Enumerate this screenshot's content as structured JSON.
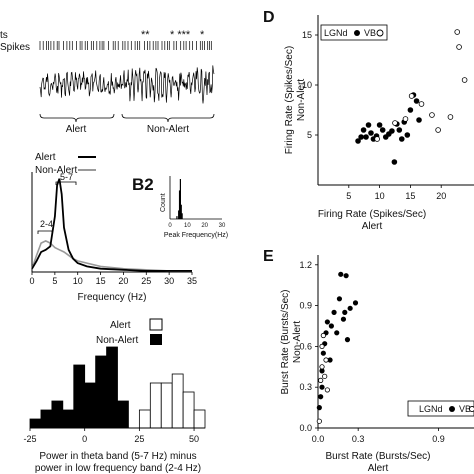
{
  "top_left": {
    "row_label_1": "ts",
    "row_label_2": "Spikes",
    "stars_1": "**",
    "stars_2": "* ***",
    "stars_3": "*",
    "state_alert": "Alert",
    "state_non_alert": "Non-Alert"
  },
  "panel_spectrum": {
    "legend": [
      "Alert",
      "Non-Alert"
    ],
    "band_labels": [
      "5-7",
      "2-4"
    ],
    "xlabel": "Frequency (Hz)",
    "x_ticks": [
      "0",
      "5",
      "10",
      "15",
      "20",
      "25",
      "30",
      "35"
    ],
    "colors": {
      "alert": "#000000",
      "non_alert": "#9a9a9a"
    }
  },
  "panel_b2": {
    "title": "B2",
    "ylabel": "Count",
    "xlabel": "Peak Frequency(Hz)",
    "x_ticks": [
      "0",
      "10",
      "20",
      "30"
    ]
  },
  "panel_hist": {
    "legend": [
      "Alert",
      "Non-Alert"
    ],
    "x_ticks": [
      "-25",
      "0",
      "25",
      "50"
    ],
    "xlabel_line1": "Power in theta band (5-7 Hz) minus",
    "xlabel_line2": "power in low frequency band (2-4 Hz)"
  },
  "panel_d": {
    "title": "D",
    "ylabel_line1": "Firing Rate (Spikes/Sec)",
    "ylabel_line2": "Non-Alert",
    "xlabel_line1": "Firing Rate (Spikes/Sec)",
    "xlabel_line2": "Alert",
    "legend_lgnd": "LGNd",
    "legend_vb": "VB",
    "x_ticks": [
      "5",
      "10",
      "15",
      "20"
    ],
    "y_ticks": [
      "5",
      "10",
      "15"
    ]
  },
  "panel_e": {
    "title": "E",
    "ylabel_line1": "Burst Rate (Bursts/Sec)",
    "ylabel_line2": "Non-Alert",
    "xlabel_line1": "Burst Rate (Bursts/Sec)",
    "xlabel_line2": "Alert",
    "legend_lgnd": "LGNd",
    "legend_vb": "VB",
    "x_ticks": [
      "0.0",
      "0.3",
      "0.9"
    ],
    "y_ticks": [
      "0.0",
      "0.3",
      "0.6",
      "0.9",
      "1.2"
    ]
  },
  "chart_data": [
    {
      "type": "line",
      "panel": "spectrum",
      "x": [
        0,
        1,
        2,
        3,
        4,
        5,
        5.5,
        6,
        6.5,
        7,
        8,
        9,
        10,
        12,
        15,
        20,
        25,
        30,
        35
      ],
      "series": [
        {
          "name": "Alert",
          "values": [
            0.3,
            1.0,
            1.8,
            2.0,
            2.3,
            5.0,
            7.8,
            8.4,
            7.0,
            4.0,
            2.0,
            1.2,
            0.8,
            0.5,
            0.3,
            0.2,
            0.1,
            0.1,
            0.1
          ]
        },
        {
          "name": "Non-Alert",
          "values": [
            0.3,
            1.5,
            2.6,
            2.8,
            2.6,
            2.2,
            2.1,
            2.0,
            1.9,
            1.8,
            1.5,
            1.2,
            1.0,
            0.8,
            0.5,
            0.3,
            0.2,
            0.1,
            0.1
          ]
        }
      ],
      "xlim": [
        0,
        35
      ],
      "xlabel": "Frequency (Hz)"
    },
    {
      "type": "bar",
      "panel": "B2",
      "categories": [
        4,
        5,
        5.5,
        6,
        6.5,
        7
      ],
      "values": [
        1,
        3,
        10,
        14,
        5,
        2
      ],
      "xlim": [
        0,
        30
      ],
      "xlabel": "Peak Frequency(Hz)",
      "ylabel": "Count"
    },
    {
      "type": "bar",
      "panel": "histogram",
      "bin_edges": [
        -25,
        -20,
        -15,
        -10,
        -5,
        0,
        5,
        10,
        15,
        20,
        25,
        30,
        35,
        40,
        45,
        50,
        55
      ],
      "series": [
        {
          "name": "Non-Alert",
          "values": [
            1,
            2,
            3,
            2,
            7,
            5,
            8,
            9,
            3,
            0,
            0,
            0,
            0,
            0,
            0,
            0
          ]
        },
        {
          "name": "Alert",
          "values": [
            0,
            0,
            0,
            0,
            0,
            0,
            0,
            0,
            0,
            0,
            2,
            5,
            5,
            6,
            4,
            2
          ]
        }
      ],
      "xlim": [
        -25,
        55
      ],
      "ylim": [
        0,
        10
      ]
    },
    {
      "type": "scatter",
      "panel": "D",
      "xlim": [
        0,
        25
      ],
      "ylim": [
        0,
        17
      ],
      "series": [
        {
          "name": "LGNd",
          "points": [
            [
              6.5,
              4.4
            ],
            [
              7,
              4.8
            ],
            [
              7.4,
              5.5
            ],
            [
              7.8,
              4.8
            ],
            [
              8.2,
              6.0
            ],
            [
              8.6,
              5.2
            ],
            [
              9.0,
              4.6
            ],
            [
              9.5,
              4.9
            ],
            [
              10,
              6.0
            ],
            [
              10.5,
              5.5
            ],
            [
              11,
              4.8
            ],
            [
              11.5,
              5.1
            ],
            [
              12,
              5.4
            ],
            [
              12.4,
              2.3
            ],
            [
              12.8,
              6.1
            ],
            [
              13.2,
              5.5
            ],
            [
              13.6,
              4.6
            ],
            [
              14,
              6.3
            ],
            [
              14.5,
              5.0
            ],
            [
              15,
              7.5
            ],
            [
              15.5,
              9.0
            ],
            [
              16,
              8.4
            ],
            [
              16.4,
              6.5
            ]
          ]
        },
        {
          "name": "VB",
          "points": [
            [
              9.6,
              4.6
            ],
            [
              12.5,
              6.2
            ],
            [
              14.2,
              6.6
            ],
            [
              15.2,
              8.9
            ],
            [
              16.8,
              8.1
            ],
            [
              18.5,
              7.0
            ],
            [
              19.5,
              5.5
            ],
            [
              21.5,
              6.8
            ],
            [
              22.6,
              15.3
            ],
            [
              22.9,
              13.8
            ],
            [
              23.8,
              10.5
            ]
          ]
        }
      ]
    },
    {
      "type": "scatter",
      "panel": "E",
      "xlim": [
        0,
        1.15
      ],
      "ylim": [
        0,
        1.25
      ],
      "series": [
        {
          "name": "LGNd",
          "points": [
            [
              0.01,
              0.15
            ],
            [
              0.02,
              0.23
            ],
            [
              0.03,
              0.3
            ],
            [
              0.03,
              0.42
            ],
            [
              0.04,
              0.55
            ],
            [
              0.05,
              0.62
            ],
            [
              0.06,
              0.7
            ],
            [
              0.07,
              0.78
            ],
            [
              0.09,
              0.5
            ],
            [
              0.1,
              0.75
            ],
            [
              0.12,
              0.85
            ],
            [
              0.14,
              0.7
            ],
            [
              0.16,
              0.95
            ],
            [
              0.17,
              1.13
            ],
            [
              0.19,
              0.8
            ],
            [
              0.2,
              0.85
            ],
            [
              0.22,
              0.65
            ],
            [
              0.24,
              0.88
            ],
            [
              0.28,
              0.92
            ],
            [
              0.21,
              1.12
            ]
          ]
        },
        {
          "name": "VB",
          "points": [
            [
              0.01,
              0.05
            ],
            [
              0.02,
              0.35
            ],
            [
              0.03,
              0.45
            ],
            [
              0.03,
              0.6
            ],
            [
              0.04,
              0.68
            ],
            [
              0.05,
              0.38
            ],
            [
              0.06,
              0.5
            ],
            [
              0.07,
              0.28
            ]
          ]
        }
      ]
    }
  ]
}
